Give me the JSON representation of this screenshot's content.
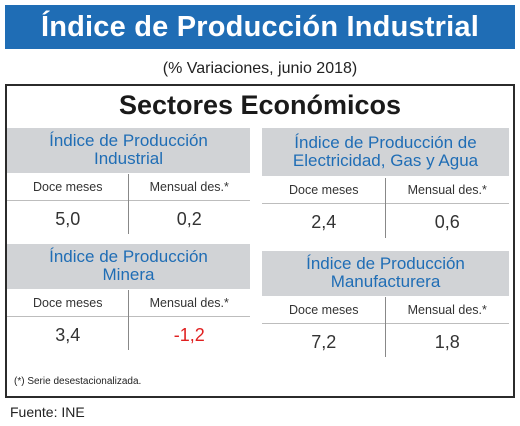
{
  "title": "Índice de Producción Industrial",
  "subtitle": "(% Variaciones,  junio 2018)",
  "section_title": "Sectores Económicos",
  "cards": [
    {
      "title_line1": "Índice de Producción",
      "title_line2": "Industrial",
      "col1": "Doce meses",
      "col2": "Mensual des.*",
      "val1": "5,0",
      "val2": "0,2"
    },
    {
      "title_line1": "Índice de Producción de",
      "title_line2": "Electricidad, Gas y Agua",
      "col1": "Doce meses",
      "col2": "Mensual des.*",
      "val1": "2,4",
      "val2": "0,6"
    },
    {
      "title_line1": "Índice de Producción",
      "title_line2": "Minera",
      "col1": "Doce meses",
      "col2": "Mensual des.*",
      "val1": "3,4",
      "val2": "-1,2"
    },
    {
      "title_line1": "Índice de Producción",
      "title_line2": "Manufacturera",
      "col1": "Doce meses",
      "col2": "Mensual des.*",
      "val1": "7,2",
      "val2": "1,8"
    }
  ],
  "colors": {
    "banner": "#1f6db5",
    "title_text": "#1f6db5",
    "negative": "#e02020"
  },
  "footnote": "(*)   Serie desestacionalizada.",
  "source": "Fuente: INE"
}
